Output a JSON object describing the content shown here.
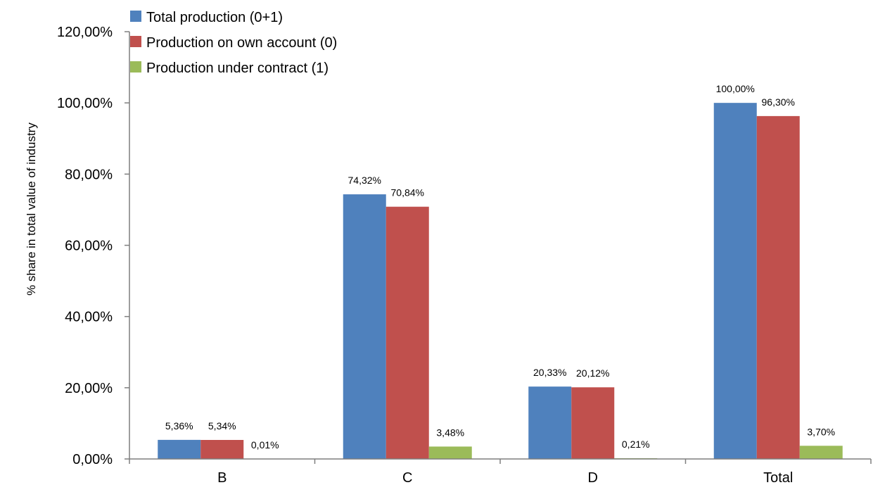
{
  "chart_data": {
    "type": "bar",
    "categories": [
      "B",
      "C",
      "D",
      "Total"
    ],
    "series": [
      {
        "name": "Total production (0+1)",
        "color": "#4F81BD",
        "values": [
          5.36,
          74.32,
          20.33,
          100.0
        ],
        "labels": [
          "5,36%",
          "74,32%",
          "20,33%",
          "100,00%"
        ]
      },
      {
        "name": "Production on own account (0)",
        "color": "#C0504D",
        "values": [
          5.34,
          70.84,
          20.12,
          96.3
        ],
        "labels": [
          "5,34%",
          "70,84%",
          "20,12%",
          "96,30%"
        ]
      },
      {
        "name": "Production under contract (1)",
        "color": "#9BBB59",
        "values": [
          0.01,
          3.48,
          0.21,
          3.7
        ],
        "labels": [
          "0,01%",
          "3,48%",
          "0,21%",
          "3,70%"
        ]
      }
    ],
    "ylabel": "% share in total value of industry",
    "xlabel": "",
    "ylim": [
      0,
      120
    ],
    "yticks": [
      0,
      20,
      40,
      60,
      80,
      100,
      120
    ],
    "ytick_labels": [
      "0,00%",
      "20,00%",
      "40,00%",
      "60,00%",
      "80,00%",
      "100,00%",
      "120,00%"
    ],
    "grid": false,
    "legend_position": "top-left"
  }
}
